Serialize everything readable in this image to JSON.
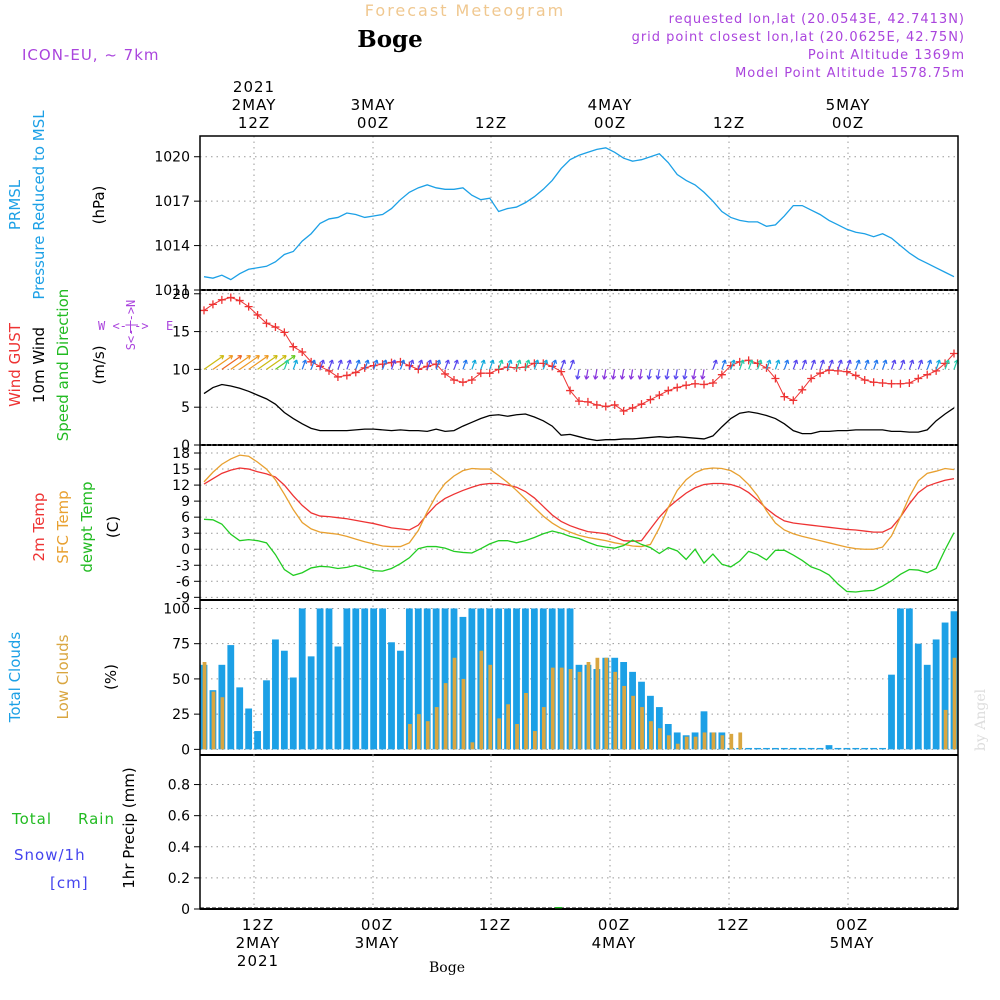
{
  "header": {
    "title": "Forecast Meteogram",
    "location": "Boge",
    "model": "ICON-EU, ~ 7km",
    "requested": "requested lon,lat (20.0543E, 42.7413N)",
    "grid_point": "grid point closest lon,lat (20.0625E, 42.75N)",
    "point_altitude": "Point Altitude 1369m",
    "model_altitude": "Model Point Altitude 1578.75m",
    "footer_location": "Boge",
    "credit": "by Angel"
  },
  "time_axis": {
    "top_labels": [
      {
        "lines": [
          "2021",
          "2MAY",
          "12Z"
        ]
      },
      {
        "lines": [
          "3MAY",
          "00Z"
        ]
      },
      {
        "lines": [
          "12Z"
        ]
      },
      {
        "lines": [
          "4MAY",
          "00Z"
        ]
      },
      {
        "lines": [
          "12Z"
        ]
      },
      {
        "lines": [
          "5MAY",
          "00Z"
        ]
      }
    ],
    "bottom_labels": [
      {
        "lines": [
          "12Z",
          "2MAY",
          "2021"
        ]
      },
      {
        "lines": [
          "00Z",
          "3MAY"
        ]
      },
      {
        "lines": [
          "12Z"
        ]
      },
      {
        "lines": [
          "00Z",
          "4MAY"
        ]
      },
      {
        "lines": [
          "12Z"
        ]
      },
      {
        "lines": [
          "00Z",
          "5MAY"
        ]
      }
    ]
  },
  "panel_labels": {
    "pressure": [
      {
        "text": "PRMSL",
        "color": "#1ca0e6"
      },
      {
        "text": "Pressure Reduced to MSL",
        "color": "#1ca0e6"
      },
      {
        "text": "(hPa)",
        "color": "#000000"
      }
    ],
    "wind": [
      {
        "text": "Wind GUST",
        "color": "#ee3333"
      },
      {
        "text": "10m Wind",
        "color": "#000000"
      },
      {
        "text": "Speed and Direction",
        "color": "#22bb22"
      },
      {
        "text": "(m/s)",
        "color": "#000000"
      }
    ],
    "compass": {
      "w": "W",
      "e": "E",
      "n": "N",
      "s": "S",
      "color": "#aa44dd"
    },
    "temperature": [
      {
        "text": "2m Temp",
        "color": "#ee3333"
      },
      {
        "text": "SFC Temp",
        "color": "#e8a030"
      },
      {
        "text": "dewpt Temp",
        "color": "#22bb22"
      },
      {
        "text": "(C)",
        "color": "#000000"
      }
    ],
    "clouds": [
      {
        "text": "Total Clouds",
        "color": "#1ca0e6"
      },
      {
        "text": "Low Clouds",
        "color": "#d9a640"
      },
      {
        "text": "(%)",
        "color": "#000000"
      }
    ],
    "precip_left": [
      {
        "text": "Total",
        "color": "#22bb22"
      },
      {
        "text": "Rain",
        "color": "#22bb22"
      },
      {
        "text": "Snow/1h",
        "color": "#4444ee"
      },
      {
        "text": "[cm]",
        "color": "#4444ee"
      }
    ],
    "precip_axis": "1hr Precip (mm)"
  },
  "colors": {
    "pressure": "#1ca0e6",
    "gust": "#ee3333",
    "wind": "#000000",
    "temp2m": "#ee3333",
    "sfc": "#e8a030",
    "dewpt": "#22cc22",
    "total_clouds": "#1ca0e6",
    "low_clouds": "#d9a640",
    "title": "#f0c890",
    "meta": "#aa44dd"
  },
  "chart_data": [
    {
      "type": "line",
      "name": "pressure",
      "ylim": [
        1011,
        1021.4
      ],
      "yticks": [
        1011,
        1014,
        1017,
        1020
      ],
      "series": [
        {
          "name": "PRMSL",
          "values": [
            1011.9,
            1011.8,
            1012.0,
            1011.7,
            1012.1,
            1012.4,
            1012.5,
            1012.6,
            1012.9,
            1013.4,
            1013.6,
            1014.3,
            1014.8,
            1015.5,
            1015.8,
            1015.9,
            1016.2,
            1016.1,
            1015.9,
            1016.0,
            1016.1,
            1016.5,
            1017.1,
            1017.6,
            1017.9,
            1018.1,
            1017.9,
            1017.8,
            1017.8,
            1017.9,
            1017.4,
            1017.1,
            1017.2,
            1016.3,
            1016.5,
            1016.6,
            1016.9,
            1017.3,
            1017.8,
            1018.4,
            1019.2,
            1019.8,
            1020.1,
            1020.3,
            1020.5,
            1020.6,
            1020.3,
            1019.9,
            1019.7,
            1019.8,
            1020.0,
            1020.2,
            1019.6,
            1018.8,
            1018.4,
            1018.1,
            1017.6,
            1017.0,
            1016.3,
            1015.9,
            1015.7,
            1015.6,
            1015.6,
            1015.3,
            1015.4,
            1016.0,
            1016.7,
            1016.7,
            1016.4,
            1016.1,
            1015.7,
            1015.4,
            1015.1,
            1014.9,
            1014.8,
            1014.6,
            1014.8,
            1014.5,
            1014.0,
            1013.5,
            1013.1,
            1012.8,
            1012.5,
            1012.2,
            1011.9
          ]
        }
      ]
    },
    {
      "type": "line",
      "name": "wind",
      "ylim": [
        0,
        20.5
      ],
      "yticks": [
        0,
        5,
        10,
        15,
        20
      ],
      "series": [
        {
          "name": "Wind GUST",
          "values": [
            17.8,
            18.6,
            19.2,
            19.5,
            19.1,
            18.3,
            17.2,
            16.1,
            15.6,
            14.9,
            13.0,
            12.3,
            11.0,
            10.4,
            9.8,
            9.0,
            9.2,
            9.6,
            10.2,
            10.5,
            10.7,
            10.9,
            11.0,
            10.5,
            10.0,
            10.4,
            10.7,
            9.4,
            8.6,
            8.3,
            8.6,
            9.5,
            9.5,
            10.0,
            10.3,
            10.2,
            10.3,
            10.8,
            10.8,
            10.4,
            9.7,
            7.2,
            5.8,
            5.7,
            5.3,
            5.1,
            5.3,
            4.5,
            4.9,
            5.4,
            6.0,
            6.6,
            7.2,
            7.6,
            7.9,
            8.1,
            8.0,
            8.2,
            9.3,
            10.5,
            11.0,
            11.2,
            10.8,
            10.2,
            8.8,
            6.4,
            5.9,
            7.3,
            8.8,
            9.5,
            9.9,
            9.8,
            9.7,
            9.2,
            8.6,
            8.3,
            8.2,
            8.1,
            8.1,
            8.2,
            8.8,
            9.3,
            9.8,
            10.8,
            12.1
          ]
        },
        {
          "name": "10m Wind",
          "values": [
            6.8,
            7.6,
            8.0,
            7.8,
            7.5,
            7.1,
            6.6,
            6.1,
            5.4,
            4.3,
            3.5,
            2.8,
            2.2,
            1.9,
            1.9,
            1.9,
            1.9,
            2.0,
            2.1,
            2.1,
            2.0,
            1.9,
            2.0,
            1.9,
            1.9,
            1.8,
            2.1,
            1.8,
            1.9,
            2.5,
            3.0,
            3.5,
            3.9,
            4.0,
            3.8,
            4.0,
            4.1,
            3.7,
            3.2,
            2.5,
            1.3,
            1.4,
            1.1,
            0.8,
            0.6,
            0.7,
            0.7,
            0.8,
            0.8,
            0.9,
            1.0,
            1.1,
            1.0,
            1.1,
            1.0,
            0.9,
            0.8,
            1.2,
            2.4,
            3.5,
            4.2,
            4.4,
            4.2,
            3.9,
            3.5,
            2.8,
            1.9,
            1.5,
            1.5,
            1.8,
            1.8,
            1.9,
            1.9,
            2.0,
            2.0,
            2.0,
            2.0,
            1.8,
            1.8,
            1.7,
            1.7,
            2.0,
            3.2,
            4.1,
            4.9
          ]
        }
      ]
    },
    {
      "type": "line",
      "name": "temperature",
      "ylim": [
        -9.5,
        19.5
      ],
      "yticks": [
        -9,
        -6,
        -3,
        0,
        3,
        6,
        9,
        12,
        15,
        18
      ],
      "series": [
        {
          "name": "2m Temp",
          "values": [
            12.2,
            13.2,
            14.2,
            14.8,
            15.2,
            15.0,
            14.5,
            14.1,
            13.5,
            12.0,
            10.0,
            8.2,
            6.8,
            6.2,
            6.1,
            5.9,
            5.7,
            5.4,
            5.1,
            4.8,
            4.4,
            4.0,
            3.8,
            3.6,
            4.5,
            6.5,
            8.3,
            9.5,
            10.3,
            11.0,
            11.6,
            12.1,
            12.3,
            12.3,
            12.0,
            11.6,
            10.8,
            9.6,
            8.0,
            6.4,
            5.2,
            4.4,
            3.8,
            3.3,
            3.1,
            2.9,
            2.3,
            1.6,
            1.5,
            1.6,
            3.8,
            6.0,
            7.8,
            9.2,
            10.5,
            11.5,
            12.1,
            12.3,
            12.3,
            12.1,
            11.6,
            10.6,
            9.2,
            7.6,
            6.3,
            5.3,
            4.9,
            4.7,
            4.5,
            4.3,
            4.1,
            3.9,
            3.7,
            3.6,
            3.4,
            3.2,
            3.2,
            4.0,
            6.0,
            8.5,
            10.6,
            11.8,
            12.4,
            12.9,
            13.2
          ]
        },
        {
          "name": "SFC Temp",
          "values": [
            12.6,
            14.4,
            15.9,
            16.9,
            17.6,
            17.4,
            16.3,
            15.0,
            13.0,
            10.3,
            7.4,
            5.0,
            3.8,
            3.2,
            3.0,
            2.8,
            2.4,
            1.9,
            1.4,
            1.0,
            0.6,
            0.5,
            0.5,
            1.2,
            3.5,
            7.0,
            10.0,
            12.3,
            13.7,
            14.7,
            15.1,
            15.0,
            15.0,
            13.8,
            12.5,
            11.0,
            9.4,
            7.8,
            6.2,
            4.9,
            3.9,
            3.2,
            2.6,
            2.2,
            1.9,
            1.6,
            1.2,
            0.9,
            0.6,
            0.5,
            0.9,
            4.0,
            7.8,
            11.0,
            13.0,
            14.3,
            15.0,
            15.2,
            15.1,
            14.7,
            13.7,
            12.1,
            10.0,
            7.2,
            4.9,
            3.6,
            2.9,
            2.4,
            2.0,
            1.6,
            1.2,
            0.8,
            0.4,
            0.1,
            0.0,
            0.0,
            0.4,
            2.5,
            6.0,
            9.8,
            12.8,
            14.2,
            14.6,
            15.1,
            14.9
          ]
        },
        {
          "name": "dewpt Temp",
          "values": [
            5.6,
            5.5,
            4.7,
            2.8,
            1.6,
            1.8,
            1.6,
            1.2,
            -1.0,
            -3.8,
            -4.9,
            -4.4,
            -3.5,
            -3.2,
            -3.3,
            -3.6,
            -3.4,
            -3.0,
            -3.5,
            -4.0,
            -4.1,
            -3.6,
            -2.7,
            -1.6,
            0.1,
            0.5,
            0.5,
            0.2,
            -0.4,
            -0.6,
            -0.7,
            0.1,
            1.0,
            1.6,
            1.6,
            1.2,
            1.6,
            2.2,
            2.9,
            3.4,
            3.0,
            2.4,
            2.0,
            1.3,
            0.7,
            0.4,
            0.2,
            0.7,
            1.7,
            0.9,
            0.3,
            -0.8,
            0.3,
            -0.3,
            -1.9,
            0.0,
            -2.6,
            -0.9,
            -2.8,
            -3.3,
            -2.2,
            -0.4,
            -1.0,
            -2.0,
            -0.2,
            -0.2,
            -1.1,
            -2.1,
            -3.3,
            -3.9,
            -4.8,
            -6.5,
            -7.9,
            -8.0,
            -7.8,
            -7.7,
            -6.9,
            -5.9,
            -4.7,
            -3.8,
            -3.9,
            -4.4,
            -3.6,
            -0.1,
            3.1
          ]
        }
      ]
    },
    {
      "type": "bar",
      "name": "clouds",
      "ylim": [
        -4,
        106
      ],
      "yticks": [
        0,
        25,
        50,
        75,
        100
      ],
      "series": [
        {
          "name": "Total Clouds",
          "values": [
            60,
            42,
            60,
            74,
            44,
            29,
            13,
            49,
            78,
            70,
            51,
            100,
            66,
            100,
            100,
            73,
            100,
            100,
            100,
            100,
            100,
            76,
            70,
            100,
            100,
            100,
            100,
            100,
            100,
            94,
            100,
            100,
            100,
            100,
            100,
            100,
            100,
            100,
            100,
            100,
            100,
            100,
            60,
            60,
            57,
            65,
            65,
            62,
            55,
            48,
            38,
            30,
            18,
            12,
            10,
            12,
            27,
            12,
            12,
            1,
            1,
            1,
            1,
            1,
            1,
            1,
            1,
            1,
            1,
            1,
            3,
            1,
            1,
            1,
            1,
            1,
            1,
            53,
            100,
            100,
            75,
            60,
            78,
            90,
            98
          ]
        },
        {
          "name": "Low Clouds",
          "values": [
            62,
            41,
            37,
            0,
            0,
            0,
            0,
            0,
            0,
            0,
            0,
            0,
            0,
            0,
            0,
            0,
            0,
            0,
            0,
            0,
            0,
            0,
            0,
            18,
            25,
            20,
            30,
            47,
            65,
            50,
            5,
            70,
            60,
            22,
            32,
            18,
            40,
            13,
            30,
            58,
            58,
            57,
            55,
            62,
            65,
            65,
            55,
            45,
            38,
            30,
            20,
            15,
            10,
            4,
            9,
            9,
            12,
            12,
            10,
            11,
            12,
            0,
            0,
            0,
            0,
            0,
            0,
            0,
            0,
            0,
            0,
            0,
            0,
            0,
            0,
            0,
            0,
            0,
            0,
            0,
            0,
            0,
            0,
            28,
            65
          ]
        }
      ]
    },
    {
      "type": "bar",
      "name": "precipitation",
      "ylim": [
        0,
        0.99
      ],
      "yticks": [
        0,
        0.2,
        0.4,
        0.6,
        0.8
      ],
      "series": [
        {
          "name": "Total Rain",
          "values": [
            0,
            0,
            0,
            0,
            0,
            0,
            0,
            0,
            0,
            0,
            0,
            0,
            0,
            0,
            0,
            0,
            0,
            0,
            0,
            0,
            0,
            0,
            0,
            0,
            0,
            0,
            0,
            0,
            0,
            0,
            0,
            0,
            0,
            0,
            0,
            0,
            0,
            0,
            0,
            0,
            0,
            0,
            0,
            0,
            0,
            0,
            0,
            0,
            0,
            0,
            0,
            0,
            0,
            0,
            0,
            0,
            0,
            0,
            0,
            0,
            0,
            0,
            0,
            0,
            0,
            0,
            0,
            0,
            0,
            0,
            0,
            0,
            0,
            0,
            0,
            0,
            0,
            0,
            0,
            0,
            0,
            0,
            0,
            0,
            0
          ]
        }
      ]
    }
  ]
}
